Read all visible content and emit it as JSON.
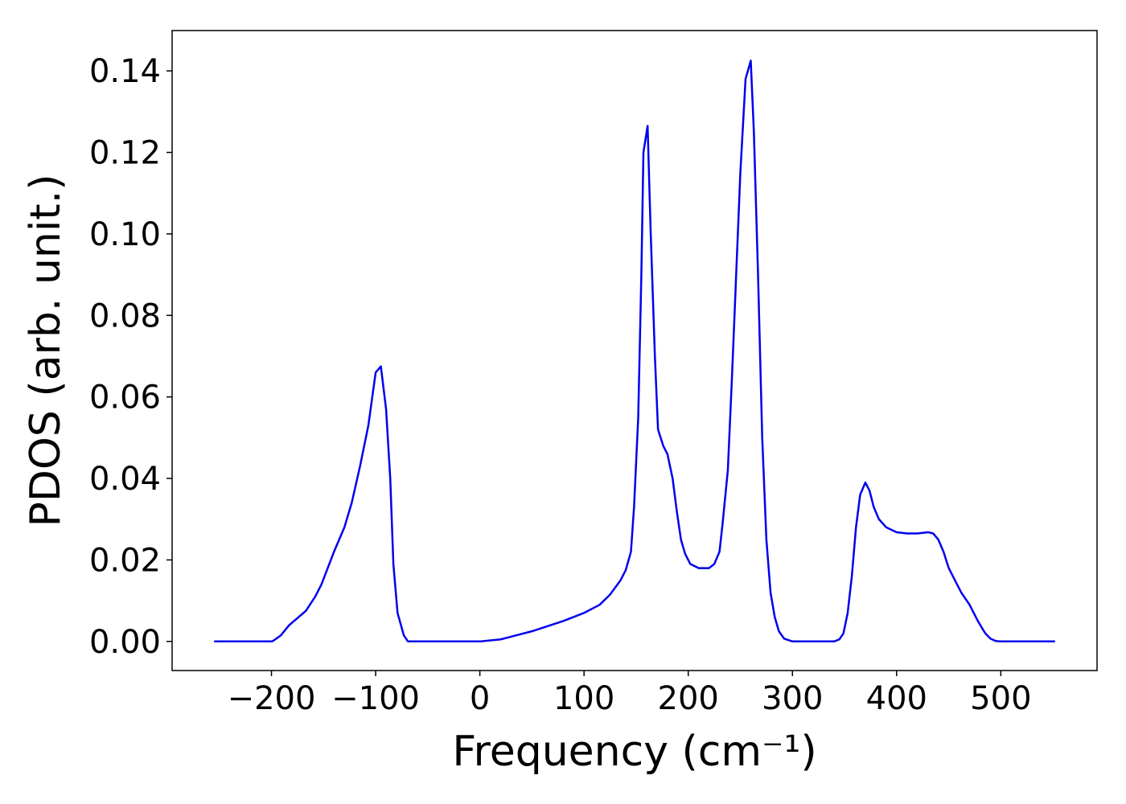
{
  "chart_data": {
    "type": "line",
    "xlabel": "Frequency (cm⁻¹)",
    "ylabel": "PDOS (arb. unit.)",
    "xlim": [
      -295.35,
      592.35
    ],
    "ylim": [
      -0.00714,
      0.1499
    ],
    "xticks": [
      {
        "value": -200,
        "label": "−200"
      },
      {
        "value": -100,
        "label": "−100"
      },
      0,
      100,
      200,
      300,
      400,
      500
    ],
    "yticks": [
      {
        "value": 0,
        "label": "0.00"
      },
      {
        "value": 0.02,
        "label": "0.02"
      },
      {
        "value": 0.04,
        "label": "0.04"
      },
      {
        "value": 0.06,
        "label": "0.06"
      },
      {
        "value": 0.08,
        "label": "0.08"
      },
      {
        "value": 0.1,
        "label": "0.10"
      },
      {
        "value": 0.12,
        "label": "0.12"
      },
      {
        "value": 0.14,
        "label": "0.14"
      }
    ],
    "grid": false,
    "series": [
      {
        "color": "#0000ee",
        "x": [
          -255,
          -230,
          -210,
          -200,
          -198,
          -191,
          -183,
          -167,
          -158,
          -152,
          -140,
          -130,
          -123,
          -115,
          -107,
          -100,
          -95,
          -90,
          -86,
          -83,
          -79,
          -73,
          -69,
          -60,
          -30,
          -10,
          0,
          20,
          50,
          80,
          100,
          115,
          125,
          135,
          140,
          145,
          148,
          152,
          155,
          157,
          161,
          164,
          168,
          171,
          176,
          180,
          185,
          189,
          193,
          197,
          202,
          210,
          220,
          225,
          230,
          233,
          238,
          242,
          246,
          250,
          255,
          260,
          263,
          267,
          271,
          275,
          279,
          283,
          287,
          292,
          300,
          320,
          340,
          345,
          349,
          353,
          357,
          361,
          365,
          370,
          374,
          378,
          383,
          390,
          400,
          410,
          420,
          430,
          435,
          440,
          445,
          450,
          456,
          462,
          470,
          478,
          485,
          490,
          495,
          500,
          520,
          552
        ],
        "values": [
          0,
          0,
          0,
          0,
          0.0002,
          0.0015,
          0.004,
          0.0075,
          0.011,
          0.014,
          0.022,
          0.028,
          0.034,
          0.043,
          0.053,
          0.066,
          0.0675,
          0.057,
          0.04,
          0.019,
          0.007,
          0.0015,
          0,
          0,
          0,
          0,
          0,
          0.0005,
          0.0025,
          0.005,
          0.007,
          0.009,
          0.0115,
          0.015,
          0.0175,
          0.022,
          0.033,
          0.055,
          0.09,
          0.12,
          0.1265,
          0.1,
          0.07,
          0.052,
          0.048,
          0.046,
          0.04,
          0.032,
          0.025,
          0.0215,
          0.019,
          0.018,
          0.018,
          0.019,
          0.022,
          0.029,
          0.042,
          0.065,
          0.09,
          0.115,
          0.138,
          0.1425,
          0.125,
          0.09,
          0.05,
          0.025,
          0.012,
          0.006,
          0.0025,
          0.0007,
          0,
          0,
          0,
          0.0005,
          0.002,
          0.007,
          0.016,
          0.028,
          0.036,
          0.039,
          0.037,
          0.033,
          0.03,
          0.028,
          0.0268,
          0.0265,
          0.0265,
          0.0268,
          0.0265,
          0.025,
          0.022,
          0.018,
          0.015,
          0.012,
          0.009,
          0.005,
          0.002,
          0.0007,
          0.0001,
          0,
          0,
          0
        ]
      }
    ]
  }
}
